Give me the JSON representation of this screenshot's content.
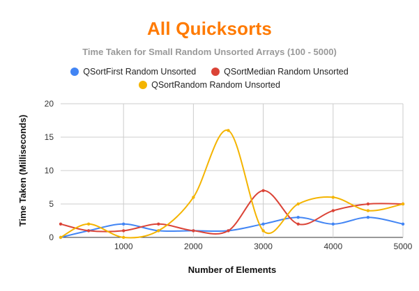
{
  "chart_data": {
    "type": "line",
    "title": "All Quicksorts",
    "subtitle": "Time Taken for Small Random Unsorted Arrays (100 - 5000)",
    "xlabel": "Number of Elements",
    "ylabel": "Time Taken (Milliseconds)",
    "xlim": [
      100,
      5000
    ],
    "ylim": [
      0,
      20
    ],
    "xticks": [
      1000,
      2000,
      3000,
      4000,
      5000
    ],
    "yticks": [
      0,
      5,
      10,
      15,
      20
    ],
    "grid": true,
    "legend_position": "top",
    "x": [
      100,
      500,
      1000,
      1500,
      2000,
      2500,
      3000,
      3500,
      4000,
      4500,
      5000
    ],
    "series": [
      {
        "name": "QSortFirst Random Unsorted",
        "color": "#4285f4",
        "values": [
          0,
          1,
          2,
          1,
          1,
          1,
          2,
          3,
          2,
          3,
          2
        ]
      },
      {
        "name": "QSortMedian Random Unsorted",
        "color": "#db4437",
        "values": [
          2,
          1,
          1,
          2,
          1,
          1,
          7,
          2,
          4,
          5,
          5
        ]
      },
      {
        "name": "QSortRandom Random Unsorted",
        "color": "#f4b400",
        "values": [
          0,
          2,
          0,
          1,
          6,
          16,
          1,
          5,
          6,
          4,
          5
        ]
      }
    ]
  }
}
